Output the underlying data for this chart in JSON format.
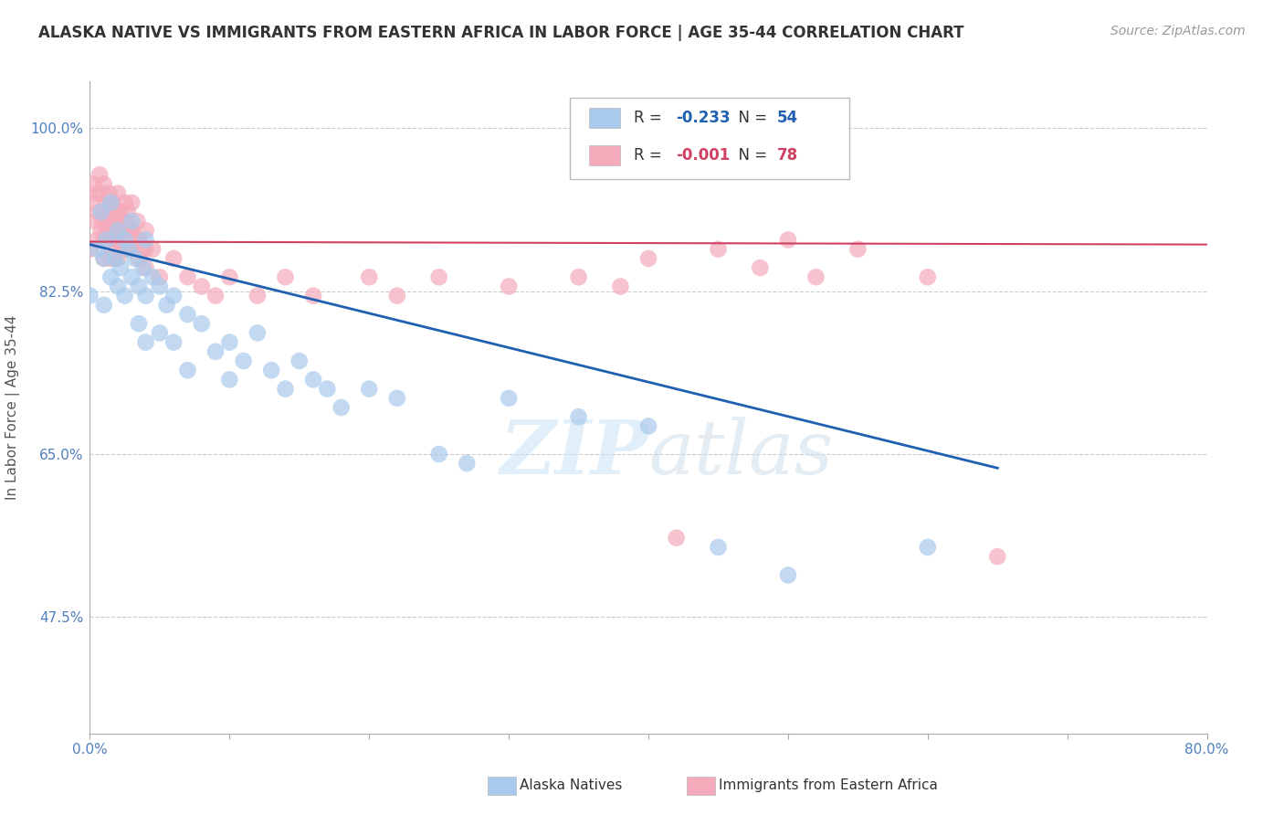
{
  "title": "ALASKA NATIVE VS IMMIGRANTS FROM EASTERN AFRICA IN LABOR FORCE | AGE 35-44 CORRELATION CHART",
  "source": "Source: ZipAtlas.com",
  "xlabel_blue": "Alaska Natives",
  "xlabel_pink": "Immigrants from Eastern Africa",
  "ylabel": "In Labor Force | Age 35-44",
  "xlim": [
    0.0,
    0.8
  ],
  "ylim": [
    0.35,
    1.05
  ],
  "yticks": [
    0.475,
    0.65,
    0.825,
    1.0
  ],
  "yticklabels": [
    "47.5%",
    "65.0%",
    "82.5%",
    "100.0%"
  ],
  "xtick_left": "0.0%",
  "xtick_right": "80.0%",
  "blue_R": -0.233,
  "blue_N": 54,
  "pink_R": -0.001,
  "pink_N": 78,
  "blue_color": "#A8CAEC",
  "pink_color": "#F4AABB",
  "blue_line_color": "#2060B0",
  "pink_line_color": "#D04060",
  "tick_color": "#5080C0",
  "blue_scatter_x": [
    0.0,
    0.005,
    0.008,
    0.01,
    0.01,
    0.012,
    0.015,
    0.015,
    0.018,
    0.02,
    0.02,
    0.022,
    0.025,
    0.025,
    0.028,
    0.03,
    0.03,
    0.032,
    0.035,
    0.035,
    0.038,
    0.04,
    0.04,
    0.04,
    0.045,
    0.05,
    0.05,
    0.055,
    0.06,
    0.06,
    0.07,
    0.07,
    0.08,
    0.09,
    0.1,
    0.1,
    0.11,
    0.12,
    0.13,
    0.14,
    0.15,
    0.16,
    0.17,
    0.18,
    0.2,
    0.22,
    0.25,
    0.27,
    0.3,
    0.35,
    0.4,
    0.45,
    0.5,
    0.6
  ],
  "blue_scatter_y": [
    0.82,
    0.87,
    0.91,
    0.86,
    0.81,
    0.88,
    0.92,
    0.84,
    0.86,
    0.89,
    0.83,
    0.85,
    0.88,
    0.82,
    0.87,
    0.9,
    0.84,
    0.86,
    0.83,
    0.79,
    0.85,
    0.88,
    0.82,
    0.77,
    0.84,
    0.83,
    0.78,
    0.81,
    0.82,
    0.77,
    0.8,
    0.74,
    0.79,
    0.76,
    0.77,
    0.73,
    0.75,
    0.78,
    0.74,
    0.72,
    0.75,
    0.73,
    0.72,
    0.7,
    0.72,
    0.71,
    0.65,
    0.64,
    0.71,
    0.69,
    0.68,
    0.55,
    0.52,
    0.55
  ],
  "pink_scatter_x": [
    0.0,
    0.002,
    0.003,
    0.004,
    0.005,
    0.005,
    0.006,
    0.007,
    0.008,
    0.008,
    0.009,
    0.01,
    0.01,
    0.01,
    0.01,
    0.012,
    0.012,
    0.013,
    0.014,
    0.015,
    0.015,
    0.015,
    0.015,
    0.016,
    0.017,
    0.018,
    0.018,
    0.019,
    0.02,
    0.02,
    0.02,
    0.02,
    0.022,
    0.022,
    0.023,
    0.024,
    0.025,
    0.025,
    0.025,
    0.026,
    0.027,
    0.028,
    0.03,
    0.03,
    0.03,
    0.032,
    0.034,
    0.035,
    0.035,
    0.038,
    0.04,
    0.04,
    0.04,
    0.045,
    0.05,
    0.06,
    0.07,
    0.08,
    0.09,
    0.1,
    0.12,
    0.14,
    0.16,
    0.2,
    0.22,
    0.25,
    0.3,
    0.35,
    0.38,
    0.4,
    0.42,
    0.45,
    0.48,
    0.5,
    0.52,
    0.55,
    0.6,
    0.65
  ],
  "pink_scatter_y": [
    0.87,
    0.92,
    0.94,
    0.9,
    0.93,
    0.88,
    0.91,
    0.95,
    0.89,
    0.93,
    0.9,
    0.94,
    0.91,
    0.88,
    0.86,
    0.92,
    0.89,
    0.9,
    0.93,
    0.91,
    0.89,
    0.88,
    0.86,
    0.92,
    0.9,
    0.88,
    0.86,
    0.91,
    0.93,
    0.9,
    0.88,
    0.86,
    0.91,
    0.89,
    0.87,
    0.9,
    0.92,
    0.89,
    0.87,
    0.88,
    0.91,
    0.89,
    0.92,
    0.89,
    0.87,
    0.88,
    0.9,
    0.88,
    0.86,
    0.87,
    0.89,
    0.87,
    0.85,
    0.87,
    0.84,
    0.86,
    0.84,
    0.83,
    0.82,
    0.84,
    0.82,
    0.84,
    0.82,
    0.84,
    0.82,
    0.84,
    0.83,
    0.84,
    0.83,
    0.86,
    0.56,
    0.87,
    0.85,
    0.88,
    0.84,
    0.87,
    0.84,
    0.54
  ],
  "blue_trend_x0": 0.0,
  "blue_trend_y0": 0.875,
  "blue_trend_x1": 0.65,
  "blue_trend_y1": 0.635,
  "pink_trend_x0": 0.0,
  "pink_trend_y0": 0.878,
  "pink_trend_x1": 0.8,
  "pink_trend_y1": 0.875
}
